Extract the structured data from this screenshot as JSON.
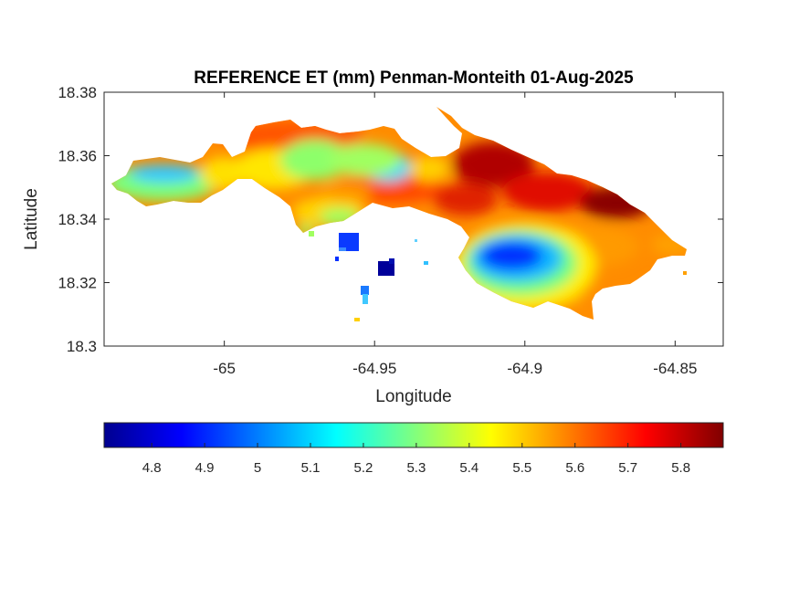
{
  "map": {
    "title": "REFERENCE ET (mm) Penman-Monteith 01-Aug-2025",
    "xlabel": "Longitude",
    "ylabel": "Latitude",
    "xlim": [
      -65.04,
      -64.834
    ],
    "ylim": [
      18.3,
      18.38
    ],
    "xticks": [
      -65,
      -64.95,
      -64.9,
      -64.85
    ],
    "xtick_labels": [
      "-65",
      "-64.95",
      "-64.9",
      "-64.85"
    ],
    "yticks": [
      18.3,
      18.32,
      18.34,
      18.36,
      18.38
    ],
    "ytick_labels": [
      "18.3",
      "18.32",
      "18.34",
      "18.36",
      "18.38"
    ],
    "colormap": "jet",
    "colors": {
      "cold": "#00008f",
      "mid": "#00ffff",
      "warm": "#ffff00",
      "hot": "#800000"
    }
  },
  "colorbar": {
    "location": "southoutside",
    "range": [
      4.71,
      5.88
    ],
    "ticks": [
      4.8,
      4.9,
      5.0,
      5.1,
      5.2,
      5.3,
      5.4,
      5.5,
      5.6,
      5.7,
      5.8
    ],
    "tick_labels": [
      "4.8",
      "4.9",
      "5",
      "5.1",
      "5.2",
      "5.3",
      "5.4",
      "5.5",
      "5.6",
      "5.7",
      "5.8"
    ]
  },
  "field": {
    "description_units": "mm",
    "background_value": 5.58,
    "regions": [
      {
        "name": "west-cyan-lobe",
        "center": [
          -65.02,
          18.354
        ],
        "value": 5.1
      },
      {
        "name": "west-green-lobe",
        "center": [
          -65.025,
          18.35
        ],
        "value": 5.25
      },
      {
        "name": "north-yellow-band",
        "center": [
          -64.985,
          18.362
        ],
        "value": 5.42
      },
      {
        "name": "central-green",
        "center": [
          -64.975,
          18.355
        ],
        "value": 5.28
      },
      {
        "name": "central-cyan",
        "center": [
          -64.952,
          18.355
        ],
        "value": 5.18
      },
      {
        "name": "south-central-yellow",
        "center": [
          -64.965,
          18.341
        ],
        "value": 5.45
      },
      {
        "name": "east-hot-core",
        "center": [
          -64.915,
          18.362
        ],
        "value": 5.8
      },
      {
        "name": "far-east-hot",
        "center": [
          -64.87,
          18.347
        ],
        "value": 5.82
      },
      {
        "name": "southeast-blue-pocket",
        "center": [
          -64.905,
          18.328
        ],
        "value": 4.9
      },
      {
        "name": "southeast-cyan-ring",
        "center": [
          -64.905,
          18.326
        ],
        "value": 5.12
      },
      {
        "name": "southeast-green-ring",
        "center": [
          -64.905,
          18.325
        ],
        "value": 5.3
      },
      {
        "name": "southeast-yellow-ring",
        "center": [
          -64.905,
          18.323
        ],
        "value": 5.46
      },
      {
        "name": "islet-blue",
        "center": [
          -64.956,
          18.333
        ],
        "value": 4.92
      },
      {
        "name": "islet-navy",
        "center": [
          -64.946,
          18.324
        ],
        "value": 4.72
      },
      {
        "name": "islet-cyan",
        "center": [
          -64.954,
          18.316
        ],
        "value": 5.05
      }
    ]
  }
}
